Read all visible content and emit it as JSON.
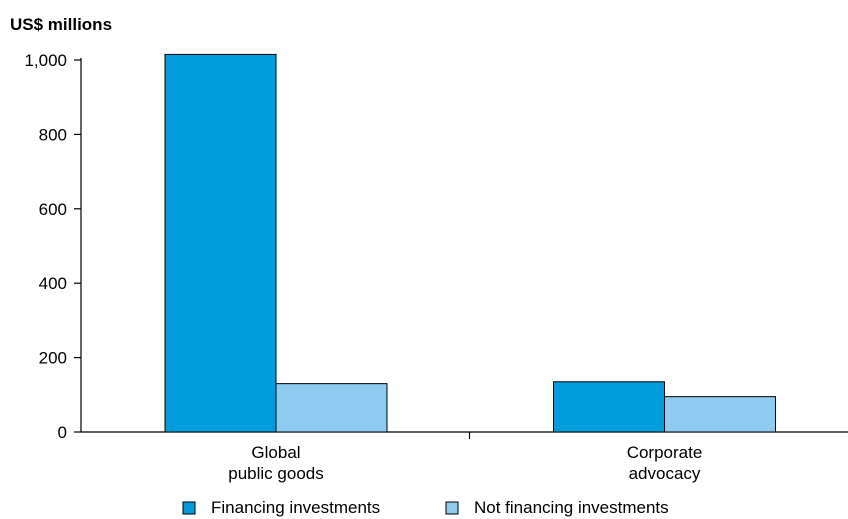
{
  "chart_data": {
    "type": "bar",
    "ylabel": "US$ millions",
    "categories": [
      [
        "Global",
        "public goods"
      ],
      [
        "Corporate",
        "advocacy"
      ]
    ],
    "series": [
      {
        "name": "Financing investments",
        "color": "#009ddc",
        "values": [
          1015,
          135
        ]
      },
      {
        "name": "Not financing investments",
        "color": "#8ecbf0",
        "values": [
          130,
          95
        ]
      }
    ],
    "ylim": [
      0,
      1000
    ],
    "yticks": [
      {
        "value": 0,
        "label": "0"
      },
      {
        "value": 200,
        "label": "200"
      },
      {
        "value": 400,
        "label": "400"
      },
      {
        "value": 600,
        "label": "600"
      },
      {
        "value": 800,
        "label": "800"
      },
      {
        "value": 1000,
        "label": "1,000"
      }
    ],
    "legend_position": "bottom",
    "grid": false
  }
}
